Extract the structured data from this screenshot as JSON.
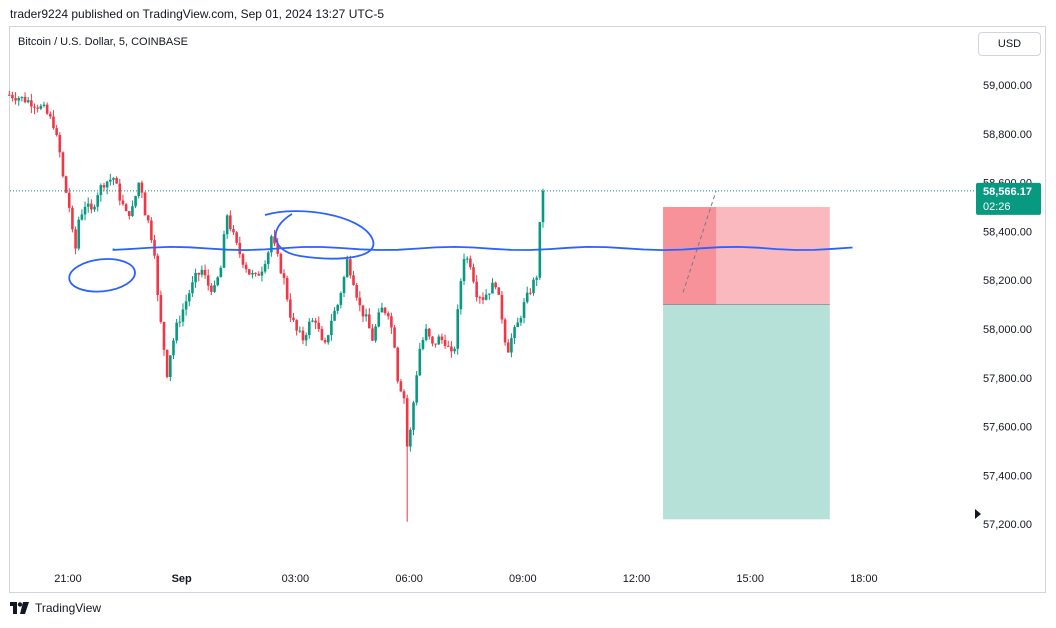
{
  "header": {
    "published_text": "trader9224 published on TradingView.com, Sep 01, 2024 13:27 UTC-5",
    "symbol_title": "Bitcoin / U.S. Dollar, 5, COINBASE",
    "currency_button": "USD"
  },
  "footer": {
    "brand": "TradingView",
    "logo_icon": "tradingview-logo-icon"
  },
  "colors": {
    "up": "#089981",
    "down": "#f23645",
    "drawing": "#2962ff",
    "stop_zone": "#f7a1aa",
    "target_zone": "#a9dcd2",
    "price_tag": "#089981"
  },
  "chart_data": {
    "type": "candlestick",
    "interval": "5",
    "symbol": "Bitcoin / U.S. Dollar",
    "exchange": "COINBASE",
    "ylim": [
      57100,
      59100
    ],
    "y_ticks": [
      {
        "value": 59000,
        "label": "59,000.00"
      },
      {
        "value": 58800,
        "label": "58,800.00"
      },
      {
        "value": 58600,
        "label": "58,600.00"
      },
      {
        "value": 58400,
        "label": "58,400.00"
      },
      {
        "value": 58200,
        "label": "58,200.00"
      },
      {
        "value": 58000,
        "label": "58,000.00"
      },
      {
        "value": 57800,
        "label": "57,800.00"
      },
      {
        "value": 57600,
        "label": "57,600.00"
      },
      {
        "value": 57400,
        "label": "57,400.00"
      },
      {
        "value": 57200,
        "label": "57,200.00"
      }
    ],
    "x_ticks": [
      {
        "label": "21:00",
        "hours": 0
      },
      {
        "label": "Sep",
        "hours": 3
      },
      {
        "label": "03:00",
        "hours": 6
      },
      {
        "label": "06:00",
        "hours": 9
      },
      {
        "label": "09:00",
        "hours": 12
      },
      {
        "label": "12:00",
        "hours": 15
      },
      {
        "label": "15:00",
        "hours": 18
      },
      {
        "label": "18:00",
        "hours": 21
      }
    ],
    "start_time": "Aug 31 19:30",
    "candle_hours": 0.08333,
    "last_price": {
      "value": 58566.17,
      "label": "58,566.17",
      "countdown": "02:26"
    },
    "price_path": [
      [
        0,
        58960
      ],
      [
        3,
        58950
      ],
      [
        7,
        58930
      ],
      [
        11,
        58900
      ],
      [
        14,
        58840
      ],
      [
        16,
        58720
      ],
      [
        17,
        58620
      ],
      [
        18,
        58560
      ],
      [
        19,
        58500
      ],
      [
        20,
        58390
      ],
      [
        21,
        58330
      ],
      [
        22,
        58450
      ],
      [
        24,
        58510
      ],
      [
        26,
        58480
      ],
      [
        28,
        58560
      ],
      [
        30,
        58600
      ],
      [
        33,
        58620
      ],
      [
        35,
        58540
      ],
      [
        37,
        58470
      ],
      [
        39,
        58490
      ],
      [
        41,
        58600
      ],
      [
        42,
        58570
      ],
      [
        43,
        58480
      ],
      [
        44,
        58440
      ],
      [
        45,
        58380
      ],
      [
        46,
        58320
      ],
      [
        47,
        58130
      ],
      [
        48,
        58020
      ],
      [
        49,
        57920
      ],
      [
        50,
        57820
      ],
      [
        51,
        57900
      ],
      [
        53,
        58010
      ],
      [
        55,
        58080
      ],
      [
        57,
        58150
      ],
      [
        59,
        58210
      ],
      [
        61,
        58240
      ],
      [
        63,
        58180
      ],
      [
        65,
        58160
      ],
      [
        67,
        58250
      ],
      [
        68,
        58370
      ],
      [
        69,
        58470
      ],
      [
        70,
        58420
      ],
      [
        72,
        58340
      ],
      [
        74,
        58280
      ],
      [
        76,
        58230
      ],
      [
        78,
        58210
      ],
      [
        80,
        58250
      ],
      [
        82,
        58320
      ],
      [
        83,
        58380
      ],
      [
        85,
        58290
      ],
      [
        87,
        58200
      ],
      [
        89,
        58060
      ],
      [
        91,
        57990
      ],
      [
        93,
        57960
      ],
      [
        95,
        58020
      ],
      [
        97,
        58040
      ],
      [
        99,
        57940
      ],
      [
        100,
        57930
      ],
      [
        102,
        58040
      ],
      [
        104,
        58100
      ],
      [
        106,
        58210
      ],
      [
        107,
        58280
      ],
      [
        109,
        58200
      ],
      [
        111,
        58090
      ],
      [
        113,
        58040
      ],
      [
        115,
        57960
      ],
      [
        117,
        58050
      ],
      [
        118,
        58080
      ],
      [
        120,
        58070
      ],
      [
        122,
        57940
      ],
      [
        123,
        57800
      ],
      [
        125,
        57720
      ],
      [
        126,
        57520
      ],
      [
        127,
        57580
      ],
      [
        128,
        57700
      ],
      [
        129,
        57820
      ],
      [
        130,
        57920
      ],
      [
        132,
        57990
      ],
      [
        134,
        57930
      ],
      [
        136,
        57960
      ],
      [
        138,
        57950
      ],
      [
        140,
        57890
      ],
      [
        141,
        57930
      ],
      [
        143,
        58200
      ],
      [
        144,
        58300
      ],
      [
        146,
        58270
      ],
      [
        148,
        58150
      ],
      [
        150,
        58130
      ],
      [
        152,
        58160
      ],
      [
        154,
        58190
      ],
      [
        156,
        58050
      ],
      [
        157,
        57960
      ],
      [
        158,
        57920
      ],
      [
        159,
        57960
      ],
      [
        161,
        58020
      ],
      [
        163,
        58100
      ],
      [
        165,
        58160
      ],
      [
        167,
        58220
      ],
      [
        168,
        58420
      ],
      [
        169,
        58566
      ]
    ],
    "drawings": {
      "support_line": {
        "from_hours": 1.2,
        "to_hours": 21.0,
        "price": 58330
      },
      "circles": [
        {
          "center_hours": 0.9,
          "center_price": 58220,
          "label": ""
        },
        {
          "center_hours": 7.3,
          "center_price": 58380,
          "label": ""
        },
        {
          "center_hours": 8.2,
          "center_price": 58330,
          "label": ""
        }
      ],
      "position": {
        "side": "short",
        "entry": 58100,
        "stop": 58500,
        "target": 57220,
        "start_hours": 15.7,
        "end_hours": 20.1,
        "filled_until_hours": 17.1
      }
    }
  }
}
